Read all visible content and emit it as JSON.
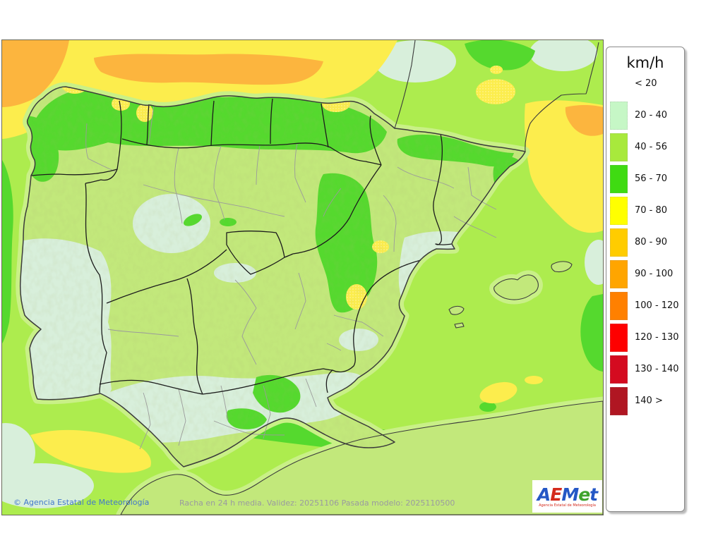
{
  "legend": {
    "title": "km/h",
    "entries": [
      {
        "label": "< 20",
        "color": null
      },
      {
        "label": "20 - 40",
        "color": "#c6f7c6"
      },
      {
        "label": "40 - 56",
        "color": "#a8e93c"
      },
      {
        "label": "56 - 70",
        "color": "#3fdb12"
      },
      {
        "label": "70 - 80",
        "color": "#ffff00"
      },
      {
        "label": "80 - 90",
        "color": "#ffcc00"
      },
      {
        "label": "90 - 100",
        "color": "#ffa500"
      },
      {
        "label": "100 - 120",
        "color": "#ff8000"
      },
      {
        "label": "120 - 130",
        "color": "#fe0000"
      },
      {
        "label": "130 - 140",
        "color": "#d40b20"
      },
      {
        "label": "140 >",
        "color": "#b01622"
      }
    ]
  },
  "map": {
    "footer_copyright": "© Agencia Estatal de Meteorología",
    "footer_info": "Racha en 24 h media. Validez: 20251106 Pasada modelo: 2025110500"
  },
  "logo": {
    "letters": [
      {
        "ch": "A",
        "color": "#2457c5"
      },
      {
        "ch": "E",
        "color": "#d42a1c"
      },
      {
        "ch": "M",
        "color": "#2457c5"
      },
      {
        "ch": "e",
        "color": "#3fa32c"
      },
      {
        "ch": "t",
        "color": "#2457c5"
      }
    ],
    "tagline": "Agencia Estatal de Meteorología",
    "tagline_color": "#d42a1c"
  },
  "colors": {
    "sea": "#adec4e",
    "sea_halo": "#c9f087",
    "land": "#c2e87b",
    "mint": "#d8efdb",
    "green": "#55d92e",
    "yellow": "#fced4d",
    "orange_band": "#fcb53e",
    "coast": "#3b3b3b",
    "border_ac": "#1c1c1c",
    "border_prov": "#9b9b9b",
    "footer_info_color": "#9a9aa0",
    "copyright_color": "#4277cc"
  }
}
